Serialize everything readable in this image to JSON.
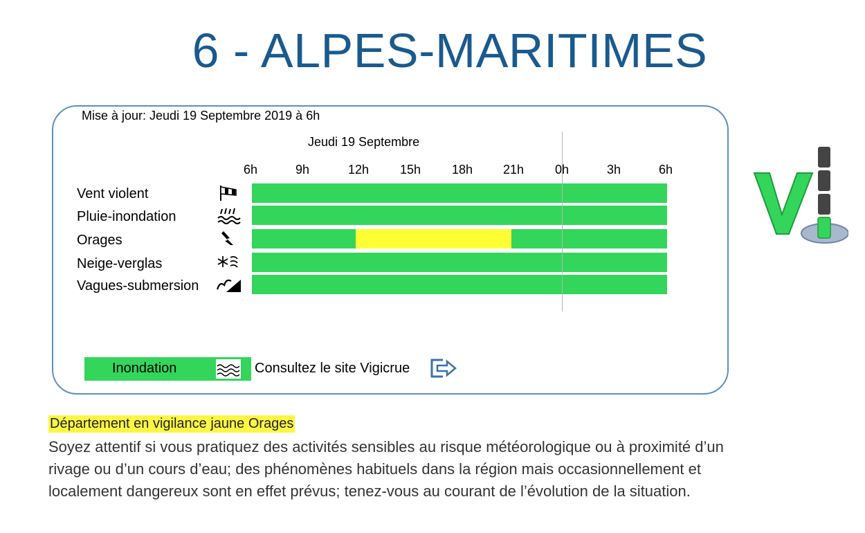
{
  "header": {
    "title": "6 - ALPES-MARITIMES"
  },
  "panel": {
    "update_text": "Mise à jour: Jeudi 19 Septembre 2019 à 6h",
    "day_label": "Jeudi 19 Septembre",
    "hours": [
      "6h",
      "9h",
      "12h",
      "15h",
      "18h",
      "21h",
      "0h",
      "3h",
      "6h"
    ],
    "rows": [
      {
        "label": "Vent violent",
        "icon": "windsock-icon",
        "level": "green"
      },
      {
        "label": "Pluie-inondation",
        "icon": "rain-flood-icon",
        "level": "green"
      },
      {
        "label": "Orages",
        "icon": "lightning-icon",
        "level": "yellow from 12h to 21h"
      },
      {
        "label": "Neige-verglas",
        "icon": "snow-ice-icon",
        "level": "green"
      },
      {
        "label": "Vagues-submersion",
        "icon": "wave-icon",
        "level": "green"
      }
    ],
    "inondation_label": "Inondation",
    "vigicrue_text": "Consultez le site Vigicrue"
  },
  "vigilance": {
    "title": "Département en vigilance jaune Orages",
    "text": "Soyez attentif si vous pratiquez des activités sensibles au risque météorologique ou à proximité d’un rivage ou d’un cours d’eau; des phénomènes habituels dans la région mais occasionnellement et localement dangereux sont en effet prévus; tenez-vous au courant de l’évolution de la situation."
  },
  "colors": {
    "green": "#33d65b",
    "yellow": "#ffff33",
    "title_blue": "#1a5a8e",
    "border_blue": "#5b8fc4"
  }
}
